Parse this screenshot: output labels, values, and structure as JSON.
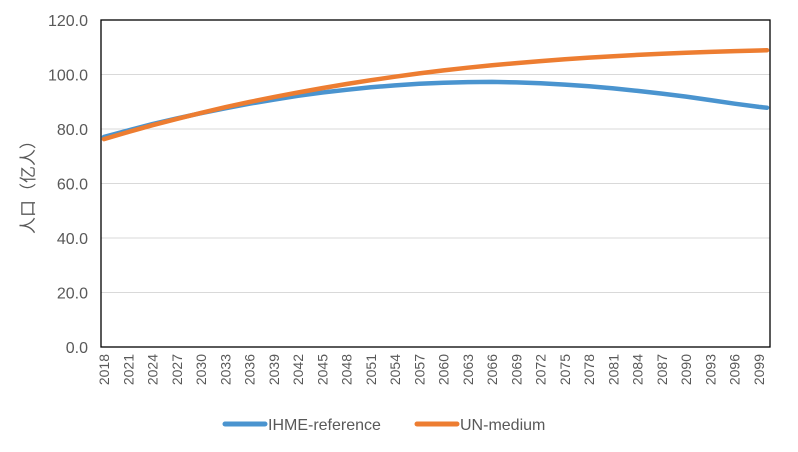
{
  "chart_data": {
    "type": "line",
    "title": "",
    "xlabel": "",
    "ylabel": "人口（亿人）",
    "ylim": [
      0,
      120
    ],
    "yticks": [
      "0.0",
      "20.0",
      "40.0",
      "60.0",
      "80.0",
      "100.0",
      "120.0"
    ],
    "xlim": [
      2018,
      2100
    ],
    "xticks": [
      "2018",
      "2021",
      "2024",
      "2027",
      "2030",
      "2033",
      "2036",
      "2039",
      "2042",
      "2045",
      "2048",
      "2051",
      "2054",
      "2057",
      "2060",
      "2063",
      "2066",
      "2069",
      "2072",
      "2075",
      "2078",
      "2081",
      "2084",
      "2087",
      "2090",
      "2093",
      "2096",
      "2099"
    ],
    "grid": true,
    "legend_position": "bottom",
    "x": [
      2018,
      2021,
      2024,
      2027,
      2030,
      2033,
      2036,
      2039,
      2042,
      2045,
      2048,
      2051,
      2054,
      2057,
      2060,
      2063,
      2066,
      2069,
      2072,
      2075,
      2078,
      2081,
      2084,
      2087,
      2090,
      2093,
      2096,
      2099,
      2100
    ],
    "series": [
      {
        "name": "IHME-reference",
        "color": "#4a94cf",
        "values": [
          77.1,
          79.5,
          81.8,
          83.9,
          85.8,
          87.6,
          89.3,
          90.8,
          92.2,
          93.4,
          94.4,
          95.3,
          96.0,
          96.6,
          97.0,
          97.2,
          97.3,
          97.1,
          96.8,
          96.3,
          95.7,
          94.9,
          94.0,
          93.0,
          91.9,
          90.6,
          89.3,
          88.1,
          87.8
        ]
      },
      {
        "name": "UN-medium",
        "color": "#ed7d31",
        "values": [
          76.3,
          78.9,
          81.4,
          83.7,
          85.9,
          88.0,
          89.9,
          91.7,
          93.4,
          95.0,
          96.5,
          97.9,
          99.2,
          100.4,
          101.5,
          102.5,
          103.4,
          104.2,
          104.9,
          105.6,
          106.2,
          106.7,
          107.2,
          107.6,
          108.0,
          108.3,
          108.6,
          108.8,
          108.9
        ]
      }
    ]
  }
}
